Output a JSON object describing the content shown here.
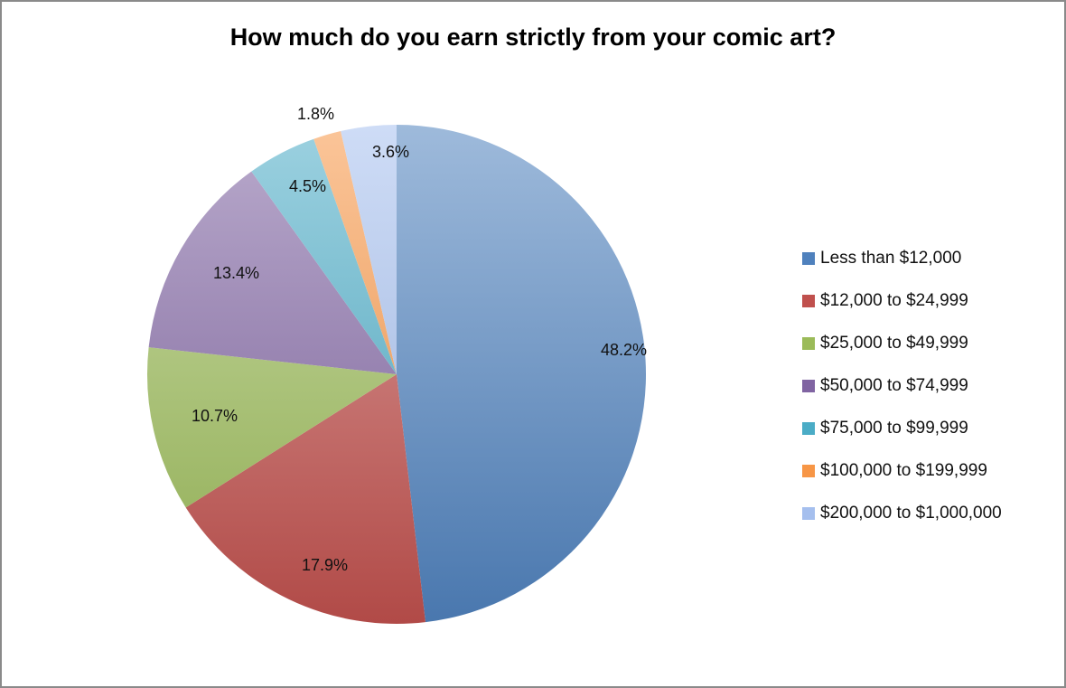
{
  "chart_data": {
    "type": "pie",
    "title": "How much do you earn strictly from your comic art?",
    "categories": [
      "Less than $12,000",
      "$12,000 to $24,999",
      "$25,000 to $49,999",
      "$50,000 to $74,999",
      "$75,000 to $99,999",
      "$100,000 to $199,999",
      "$200,000 to $1,000,000"
    ],
    "values": [
      48.2,
      17.9,
      10.7,
      13.4,
      4.5,
      1.8,
      3.6
    ],
    "labels": [
      "48.2%",
      "17.9%",
      "10.7%",
      "13.4%",
      "4.5%",
      "1.8%",
      "3.6%"
    ],
    "colors": [
      "#4f81bd",
      "#c0504d",
      "#9bbb59",
      "#8064a2",
      "#4bacc6",
      "#f79646",
      "#a5bfee"
    ],
    "legend_position": "right",
    "start_angle": "12 o'clock, clockwise"
  },
  "title": "How much do you earn strictly from your comic art?",
  "legend": [
    {
      "label": "Less than $12,000",
      "color": "#4f81bd"
    },
    {
      "label": "$12,000 to $24,999",
      "color": "#c0504d"
    },
    {
      "label": "$25,000 to $49,999",
      "color": "#9bbb59"
    },
    {
      "label": "$50,000 to $74,999",
      "color": "#8064a2"
    },
    {
      "label": "$75,000 to $99,999",
      "color": "#4bacc6"
    },
    {
      "label": "$100,000 to $199,999",
      "color": "#f79646"
    },
    {
      "label": "$200,000 to $1,000,000",
      "color": "#a5bfee"
    }
  ]
}
